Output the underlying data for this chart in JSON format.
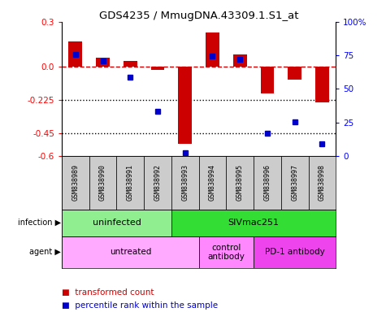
{
  "title": "GDS4235 / MmugDNA.43309.1.S1_at",
  "samples": [
    "GSM838989",
    "GSM838990",
    "GSM838991",
    "GSM838992",
    "GSM838993",
    "GSM838994",
    "GSM838995",
    "GSM838996",
    "GSM838997",
    "GSM838998"
  ],
  "red_bars": [
    0.17,
    0.06,
    0.04,
    -0.02,
    -0.52,
    0.23,
    0.08,
    -0.18,
    -0.09,
    -0.24
  ],
  "blue_squares": [
    0.08,
    0.04,
    -0.07,
    -0.3,
    -0.58,
    0.07,
    0.05,
    -0.45,
    -0.37,
    -0.52
  ],
  "ylim_left": [
    -0.6,
    0.3
  ],
  "ylim_right": [
    0,
    100
  ],
  "yticks_left": [
    0.3,
    0.0,
    -0.225,
    -0.45,
    -0.6
  ],
  "yticks_right": [
    100,
    75,
    50,
    25,
    0
  ],
  "infection_groups": [
    {
      "label": "uninfected",
      "start": 0,
      "end": 4,
      "color": "#90EE90"
    },
    {
      "label": "SIVmac251",
      "start": 4,
      "end": 10,
      "color": "#33DD33"
    }
  ],
  "agent_groups": [
    {
      "label": "untreated",
      "start": 0,
      "end": 5,
      "color": "#FFAAFF"
    },
    {
      "label": "control\nantibody",
      "start": 5,
      "end": 7,
      "color": "#FF88FF"
    },
    {
      "label": "PD-1 antibody",
      "start": 7,
      "end": 10,
      "color": "#EE44EE"
    }
  ],
  "bar_color": "#CC0000",
  "square_color": "#0000CC",
  "background": "#FFFFFF",
  "dashed_line_color": "#CC0000",
  "dotted_line_color": "#000000",
  "sample_bg": "#CCCCCC"
}
